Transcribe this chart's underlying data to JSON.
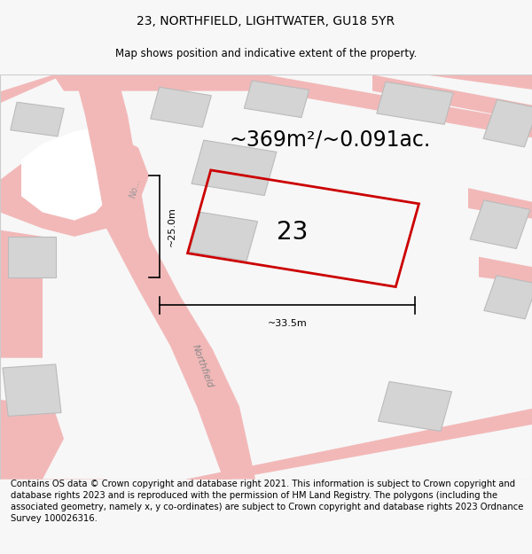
{
  "title": "23, NORTHFIELD, LIGHTWATER, GU18 5YR",
  "subtitle": "Map shows position and indicative extent of the property.",
  "area_text": "~369m²/~0.091ac.",
  "number_label": "23",
  "width_label": "~33.5m",
  "height_label": "~25.0m",
  "road_label_upper": "No...",
  "road_label_lower": "Northfield",
  "footer_text": "Contains OS data © Crown copyright and database right 2021. This information is subject to Crown copyright and database rights 2023 and is reproduced with the permission of HM Land Registry. The polygons (including the associated geometry, namely x, y co-ordinates) are subject to Crown copyright and database rights 2023 Ordnance Survey 100026316.",
  "bg_color": "#f7f7f7",
  "map_bg": "#ffffff",
  "road_color": "#f2b8b8",
  "building_color": "#d4d4d4",
  "building_edge": "#bbbbbb",
  "plot_edge_color": "#cc0000",
  "title_fontsize": 10,
  "subtitle_fontsize": 8.5,
  "area_fontsize": 17,
  "number_fontsize": 20,
  "dim_fontsize": 8,
  "road_label_fontsize": 7,
  "footer_fontsize": 7.2
}
